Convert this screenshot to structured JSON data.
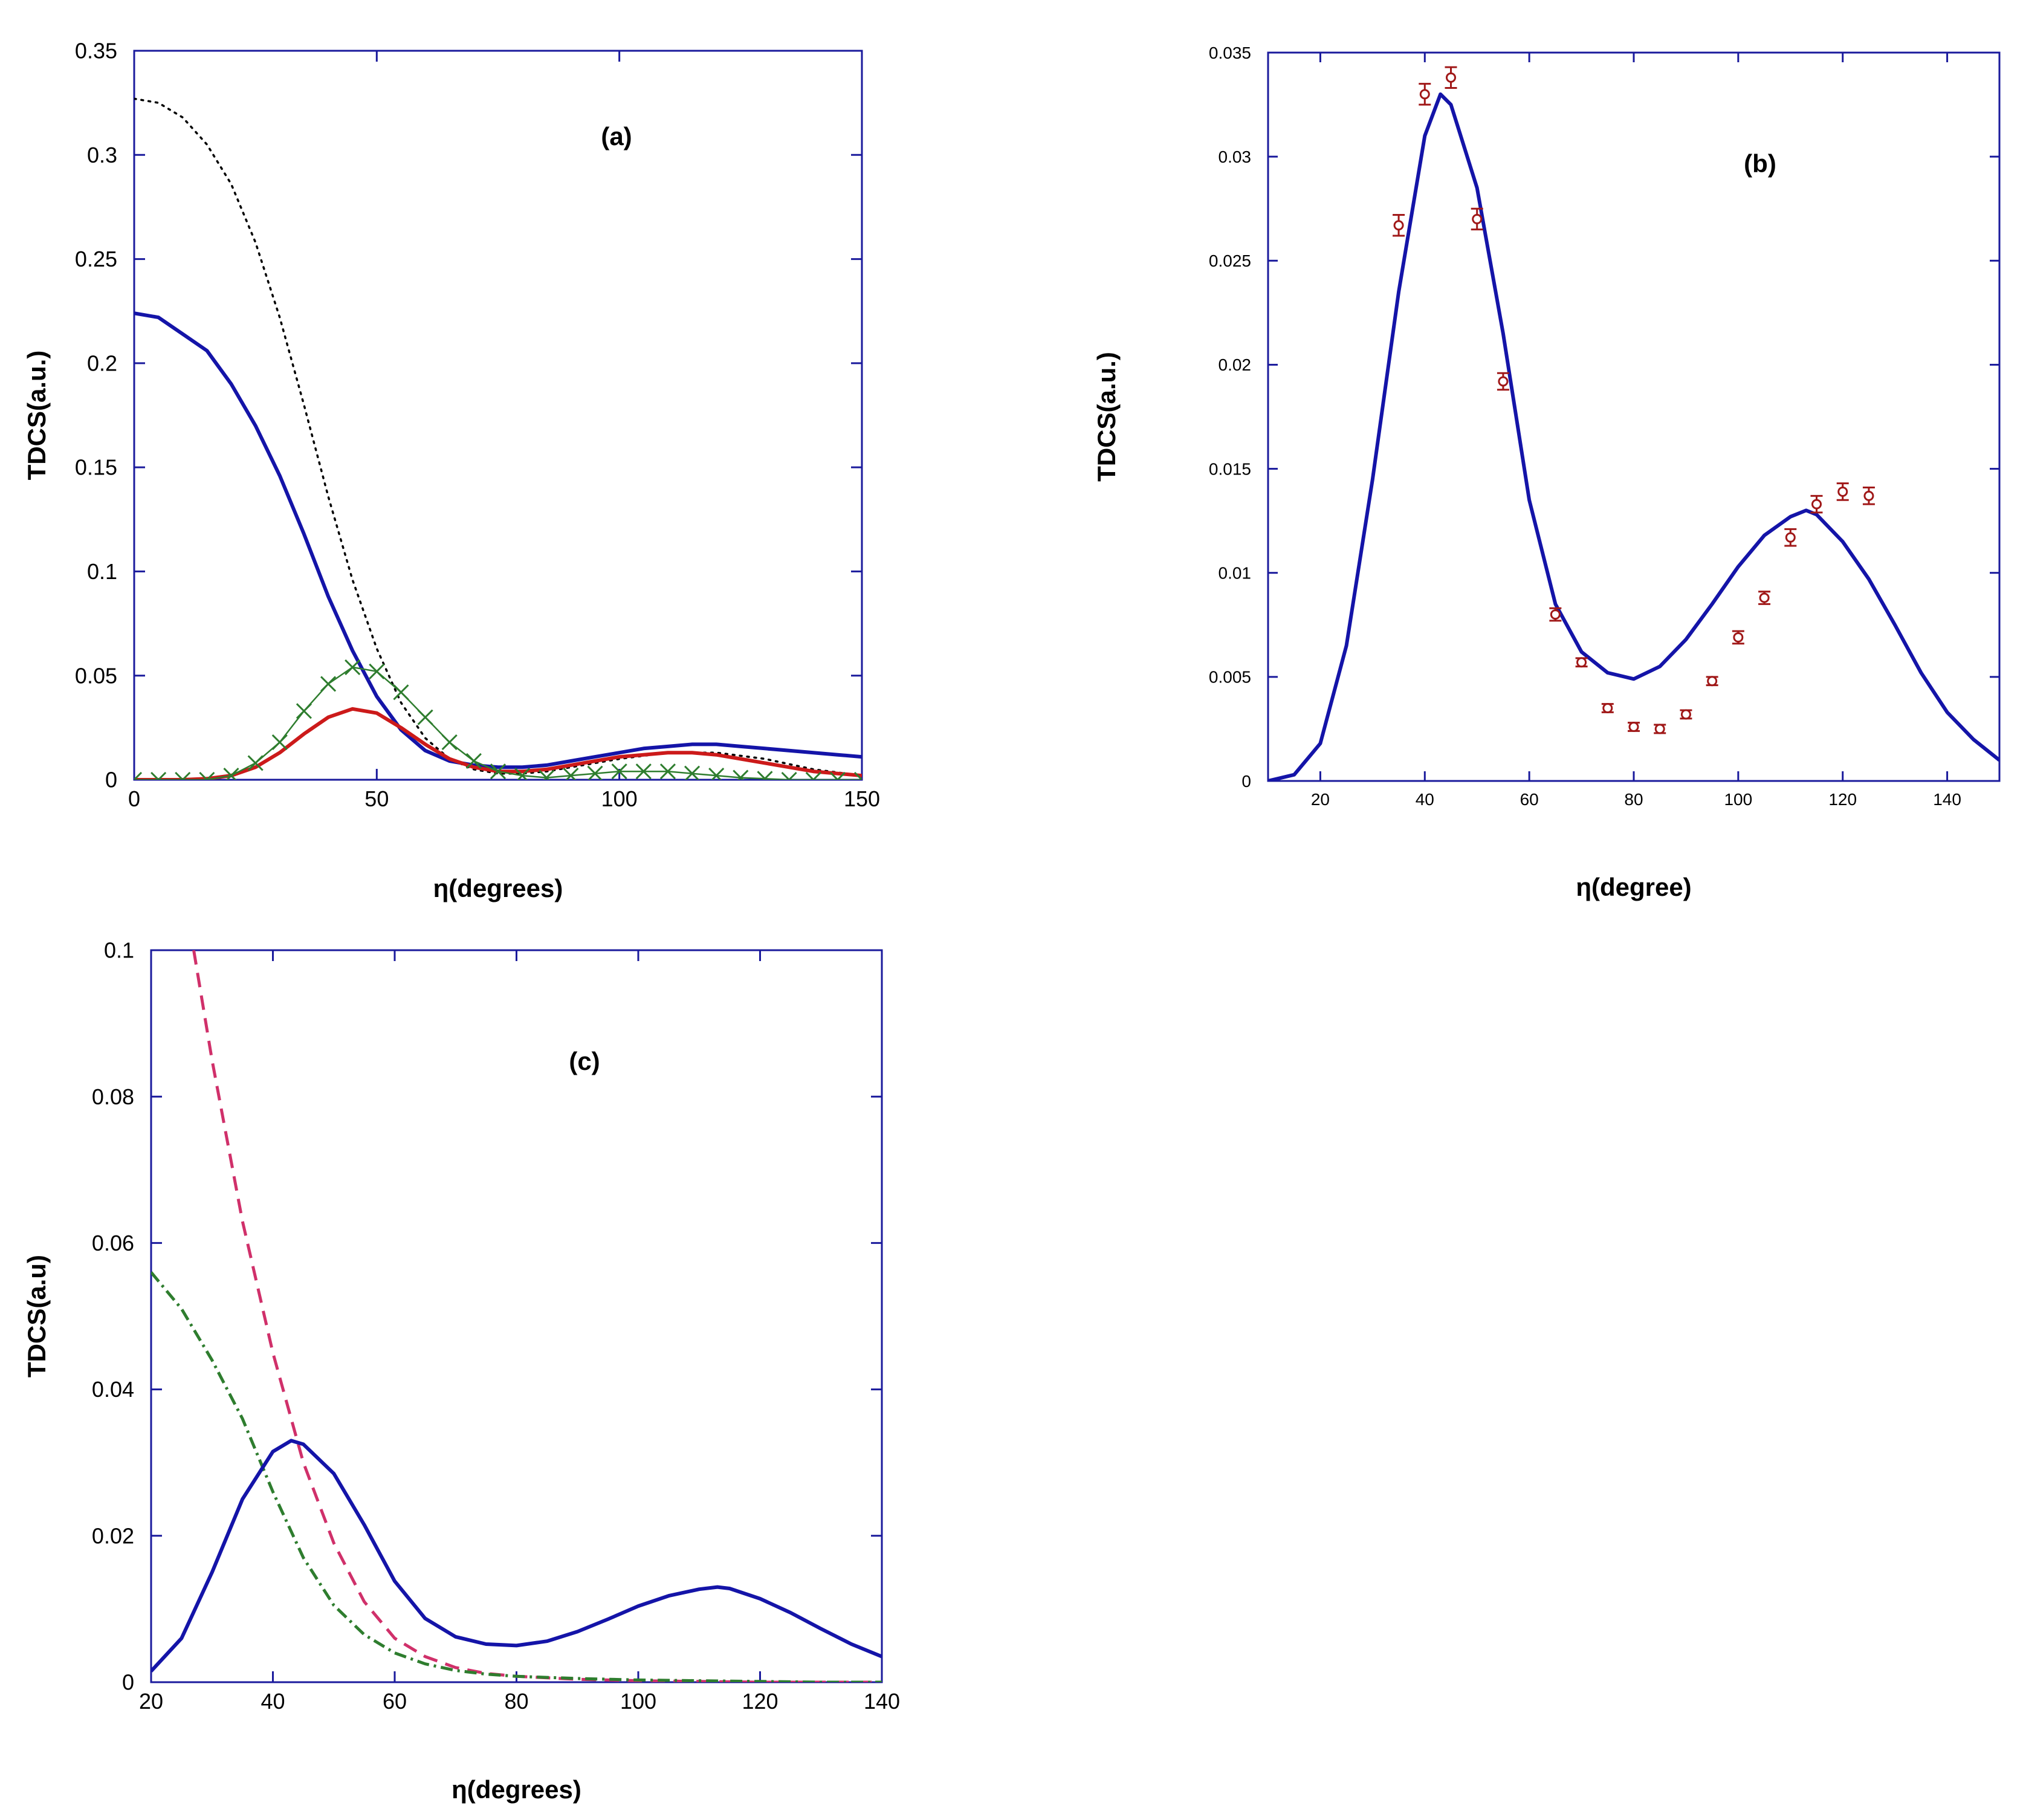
{
  "chart_data": [
    {
      "type": "line",
      "panel_label": "(a)",
      "xlabel": "η(degrees)",
      "ylabel": "TDCS(a.u.)",
      "xlim": [
        0,
        150
      ],
      "ylim": [
        0,
        0.35
      ],
      "xticks": [
        0,
        50,
        100,
        150
      ],
      "xtick_labels": [
        "0",
        "50",
        "100",
        "150"
      ],
      "yticks": [
        0,
        0.05,
        0.1,
        0.15,
        0.2,
        0.25,
        0.3,
        0.35
      ],
      "ytick_labels": [
        "0",
        "0.05",
        "0.1",
        "0.15",
        "0.2",
        "0.25",
        "0.3",
        "0.35"
      ],
      "axis_color": "#1a1a9c",
      "series": [
        {
          "name": "dotted-black",
          "style": "dotted",
          "color": "#000000",
          "x": [
            0,
            5,
            10,
            15,
            20,
            25,
            30,
            35,
            40,
            45,
            50,
            55,
            60,
            65,
            70,
            75,
            80,
            85,
            90,
            100,
            110,
            120,
            130,
            140,
            150
          ],
          "y": [
            0.327,
            0.325,
            0.318,
            0.305,
            0.286,
            0.258,
            0.222,
            0.18,
            0.136,
            0.096,
            0.063,
            0.037,
            0.02,
            0.01,
            0.005,
            0.003,
            0.003,
            0.004,
            0.006,
            0.01,
            0.013,
            0.013,
            0.01,
            0.005,
            0.002
          ]
        },
        {
          "name": "solid-blue",
          "style": "solid",
          "color": "#1414a8",
          "x": [
            0,
            5,
            10,
            15,
            20,
            25,
            30,
            35,
            40,
            45,
            50,
            55,
            60,
            65,
            70,
            75,
            80,
            85,
            90,
            95,
            100,
            105,
            110,
            115,
            120,
            125,
            130,
            135,
            140,
            145,
            150
          ],
          "y": [
            0.224,
            0.222,
            0.214,
            0.206,
            0.19,
            0.17,
            0.146,
            0.118,
            0.088,
            0.062,
            0.04,
            0.024,
            0.014,
            0.009,
            0.007,
            0.006,
            0.006,
            0.007,
            0.009,
            0.011,
            0.013,
            0.015,
            0.016,
            0.017,
            0.017,
            0.016,
            0.015,
            0.014,
            0.013,
            0.012,
            0.011
          ]
        },
        {
          "name": "solid-red",
          "style": "solid",
          "color": "#cc1a1a",
          "x": [
            0,
            5,
            10,
            15,
            20,
            25,
            30,
            35,
            40,
            45,
            50,
            55,
            60,
            65,
            70,
            75,
            80,
            85,
            90,
            95,
            100,
            105,
            110,
            115,
            120,
            125,
            130,
            135,
            140,
            145,
            150
          ],
          "y": [
            0,
            0,
            0,
            0.0005,
            0.002,
            0.006,
            0.013,
            0.022,
            0.03,
            0.034,
            0.032,
            0.025,
            0.017,
            0.01,
            0.006,
            0.004,
            0.004,
            0.005,
            0.007,
            0.009,
            0.011,
            0.012,
            0.013,
            0.013,
            0.012,
            0.01,
            0.008,
            0.006,
            0.004,
            0.003,
            0.002
          ]
        },
        {
          "name": "green-crosses",
          "style": "line-x-markers",
          "color": "#2e7d2e",
          "x": [
            0,
            5,
            10,
            15,
            20,
            25,
            30,
            35,
            40,
            45,
            50,
            55,
            60,
            65,
            70,
            75,
            80,
            85,
            90,
            95,
            100,
            105,
            110,
            115,
            120,
            125,
            130,
            135,
            140,
            145,
            150
          ],
          "y": [
            0,
            0,
            0,
            0,
            0.002,
            0.008,
            0.018,
            0.033,
            0.046,
            0.054,
            0.052,
            0.042,
            0.03,
            0.018,
            0.009,
            0.004,
            0.002,
            0.001,
            0.002,
            0.003,
            0.004,
            0.004,
            0.004,
            0.003,
            0.002,
            0.001,
            0.0005,
            0,
            0,
            0,
            0
          ]
        }
      ]
    },
    {
      "type": "line",
      "panel_label": "(b)",
      "xlabel": "η(degree)",
      "ylabel": "TDCS(a.u.)",
      "xlim": [
        10,
        150
      ],
      "ylim": [
        0,
        0.035
      ],
      "xticks": [
        20,
        40,
        60,
        80,
        100,
        120,
        140
      ],
      "xtick_labels": [
        "20",
        "40",
        "60",
        "80",
        "100",
        "120",
        "140"
      ],
      "yticks": [
        0,
        0.005,
        0.01,
        0.015,
        0.02,
        0.025,
        0.03,
        0.035
      ],
      "ytick_labels": [
        "0",
        "0.005",
        "0.01",
        "0.015",
        "0.02",
        "0.025",
        "0.03",
        "0.035"
      ],
      "axis_color": "#1a1a9c",
      "series": [
        {
          "name": "theory-solid-blue",
          "style": "solid",
          "color": "#1414a8",
          "x": [
            10,
            15,
            20,
            25,
            30,
            35,
            40,
            43,
            45,
            50,
            55,
            60,
            65,
            70,
            75,
            80,
            85,
            90,
            95,
            100,
            105,
            110,
            113,
            115,
            120,
            125,
            130,
            135,
            140,
            145,
            150
          ],
          "y": [
            0,
            0.0003,
            0.0018,
            0.0065,
            0.0145,
            0.0235,
            0.031,
            0.033,
            0.0325,
            0.0285,
            0.0215,
            0.0135,
            0.0085,
            0.0062,
            0.0052,
            0.0049,
            0.0055,
            0.0068,
            0.0085,
            0.0103,
            0.0118,
            0.0127,
            0.013,
            0.0128,
            0.0115,
            0.0097,
            0.0075,
            0.0052,
            0.0033,
            0.002,
            0.001
          ]
        },
        {
          "name": "experiment",
          "style": "markers-errorbars",
          "color": "#a01818",
          "x": [
            35,
            40,
            45,
            50,
            55,
            65,
            70,
            75,
            80,
            85,
            90,
            95,
            100,
            105,
            110,
            115,
            120,
            125
          ],
          "y": [
            0.0267,
            0.033,
            0.0338,
            0.027,
            0.0192,
            0.008,
            0.0057,
            0.0035,
            0.0026,
            0.0025,
            0.0032,
            0.0048,
            0.0069,
            0.0088,
            0.0117,
            0.0133,
            0.0139,
            0.0137
          ],
          "err": [
            0.0005,
            0.0005,
            0.0005,
            0.0005,
            0.0004,
            0.0003,
            0.0002,
            0.0002,
            0.0002,
            0.0002,
            0.0002,
            0.0002,
            0.0003,
            0.0003,
            0.0004,
            0.0004,
            0.0004,
            0.0004
          ]
        }
      ]
    },
    {
      "type": "line",
      "panel_label": "(c)",
      "xlabel": "η(degrees)",
      "ylabel": "TDCS(a.u)",
      "xlim": [
        20,
        140
      ],
      "ylim": [
        0,
        0.1
      ],
      "xticks": [
        20,
        40,
        60,
        80,
        100,
        120,
        140
      ],
      "xtick_labels": [
        "20",
        "40",
        "60",
        "80",
        "100",
        "120",
        "140"
      ],
      "yticks": [
        0,
        0.02,
        0.04,
        0.06,
        0.08,
        0.1
      ],
      "ytick_labels": [
        "0",
        "0.02",
        "0.04",
        "0.06",
        "0.08",
        "0.1"
      ],
      "axis_color": "#1a1a9c",
      "series": [
        {
          "name": "dashed-pink",
          "style": "dashed",
          "color": "#d0306a",
          "x": [
            27,
            30,
            35,
            40,
            45,
            50,
            55,
            60,
            65,
            70,
            75,
            80,
            90,
            100,
            110,
            120,
            130,
            140
          ],
          "y": [
            0.1,
            0.085,
            0.063,
            0.045,
            0.03,
            0.019,
            0.011,
            0.006,
            0.0035,
            0.002,
            0.0012,
            0.0008,
            0.0004,
            0.0002,
            0.0001,
            0,
            0,
            0
          ]
        },
        {
          "name": "dashdot-green",
          "style": "dashdot",
          "color": "#2e7d2e",
          "x": [
            20,
            25,
            30,
            35,
            40,
            45,
            50,
            55,
            60,
            65,
            70,
            75,
            80,
            90,
            100,
            110,
            120,
            130,
            140
          ],
          "y": [
            0.056,
            0.051,
            0.044,
            0.036,
            0.026,
            0.017,
            0.0105,
            0.0065,
            0.004,
            0.0025,
            0.0016,
            0.0011,
            0.0008,
            0.0005,
            0.0003,
            0.0002,
            0.0001,
            0,
            0
          ]
        },
        {
          "name": "solid-blue",
          "style": "solid",
          "color": "#1414a8",
          "x": [
            20,
            25,
            30,
            35,
            40,
            43,
            45,
            50,
            55,
            60,
            65,
            70,
            75,
            80,
            85,
            90,
            95,
            100,
            105,
            110,
            113,
            115,
            120,
            125,
            130,
            135,
            140
          ],
          "y": [
            0.0015,
            0.006,
            0.015,
            0.025,
            0.0315,
            0.033,
            0.0325,
            0.0285,
            0.0215,
            0.0138,
            0.0087,
            0.0062,
            0.0052,
            0.005,
            0.0056,
            0.0069,
            0.0086,
            0.0104,
            0.0118,
            0.0127,
            0.013,
            0.0128,
            0.0114,
            0.0095,
            0.0073,
            0.0052,
            0.0035
          ]
        }
      ]
    }
  ]
}
